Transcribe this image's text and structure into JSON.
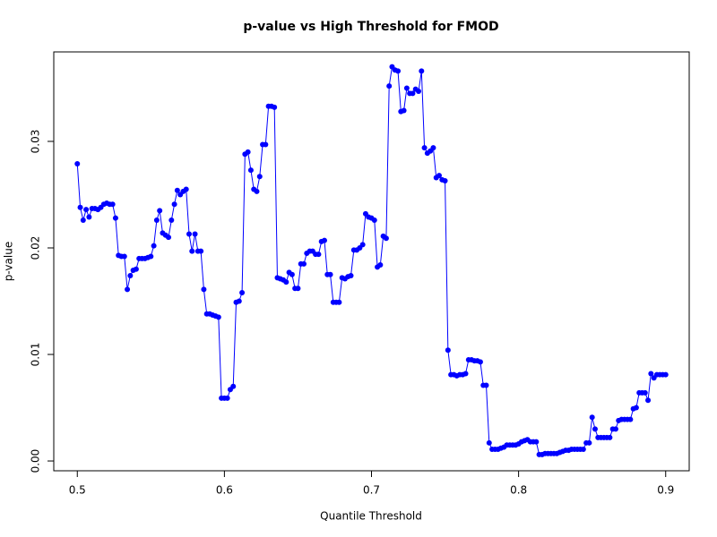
{
  "chart_data": {
    "type": "line",
    "title": "p-value vs High Threshold for FMOD",
    "x_label": "Quantile Threshold",
    "y_label": "p-value",
    "color": "#0000ff",
    "x": [
      0.5,
      0.502,
      0.504,
      0.506,
      0.508,
      0.51,
      0.512,
      0.514,
      0.516,
      0.518,
      0.52,
      0.522,
      0.524,
      0.526,
      0.528,
      0.53,
      0.532,
      0.534,
      0.536,
      0.538,
      0.54,
      0.542,
      0.544,
      0.546,
      0.548,
      0.55,
      0.552,
      0.554,
      0.556,
      0.558,
      0.56,
      0.562,
      0.564,
      0.566,
      0.568,
      0.57,
      0.572,
      0.574,
      0.576,
      0.578,
      0.58,
      0.582,
      0.584,
      0.586,
      0.588,
      0.59,
      0.592,
      0.594,
      0.596,
      0.598,
      0.6,
      0.602,
      0.604,
      0.606,
      0.608,
      0.61,
      0.612,
      0.614,
      0.616,
      0.618,
      0.62,
      0.622,
      0.624,
      0.626,
      0.628,
      0.63,
      0.632,
      0.634,
      0.636,
      0.638,
      0.64,
      0.642,
      0.644,
      0.646,
      0.648,
      0.65,
      0.652,
      0.654,
      0.656,
      0.658,
      0.66,
      0.662,
      0.664,
      0.666,
      0.668,
      0.67,
      0.672,
      0.674,
      0.676,
      0.678,
      0.68,
      0.682,
      0.684,
      0.686,
      0.688,
      0.69,
      0.692,
      0.694,
      0.696,
      0.698,
      0.7,
      0.702,
      0.704,
      0.706,
      0.708,
      0.71,
      0.712,
      0.714,
      0.716,
      0.718,
      0.72,
      0.722,
      0.724,
      0.726,
      0.728,
      0.73,
      0.732,
      0.734,
      0.736,
      0.738,
      0.74,
      0.742,
      0.744,
      0.746,
      0.748,
      0.75,
      0.752,
      0.754,
      0.756,
      0.758,
      0.76,
      0.762,
      0.764,
      0.766,
      0.768,
      0.77,
      0.772,
      0.774,
      0.776,
      0.778,
      0.78,
      0.782,
      0.784,
      0.786,
      0.788,
      0.79,
      0.792,
      0.794,
      0.796,
      0.798,
      0.8,
      0.802,
      0.804,
      0.806,
      0.808,
      0.81,
      0.812,
      0.814,
      0.816,
      0.818,
      0.82,
      0.822,
      0.824,
      0.826,
      0.828,
      0.83,
      0.832,
      0.834,
      0.836,
      0.838,
      0.84,
      0.842,
      0.844,
      0.846,
      0.848,
      0.85,
      0.852,
      0.854,
      0.856,
      0.858,
      0.86,
      0.862,
      0.864,
      0.866,
      0.868,
      0.87,
      0.872,
      0.874,
      0.876,
      0.878,
      0.88,
      0.882,
      0.884,
      0.886,
      0.888,
      0.89,
      0.892,
      0.894,
      0.896,
      0.898,
      0.9
    ],
    "values": [
      0.0279,
      0.0238,
      0.0226,
      0.0236,
      0.0229,
      0.0237,
      0.0237,
      0.0236,
      0.0238,
      0.0241,
      0.0242,
      0.0241,
      0.0241,
      0.0228,
      0.0193,
      0.0192,
      0.0192,
      0.0161,
      0.0174,
      0.0179,
      0.018,
      0.019,
      0.019,
      0.019,
      0.0191,
      0.0192,
      0.0202,
      0.0226,
      0.0235,
      0.0214,
      0.0212,
      0.021,
      0.0226,
      0.0241,
      0.0254,
      0.025,
      0.0253,
      0.0255,
      0.0213,
      0.0197,
      0.0213,
      0.0197,
      0.0197,
      0.0161,
      0.0138,
      0.0138,
      0.0137,
      0.0136,
      0.0135,
      0.0059,
      0.0059,
      0.0059,
      0.0067,
      0.007,
      0.0149,
      0.015,
      0.0158,
      0.0288,
      0.029,
      0.0273,
      0.0255,
      0.0253,
      0.0267,
      0.0297,
      0.0297,
      0.0333,
      0.0333,
      0.0332,
      0.0172,
      0.0171,
      0.017,
      0.0168,
      0.0177,
      0.0175,
      0.0162,
      0.0162,
      0.0185,
      0.0185,
      0.0195,
      0.0197,
      0.0197,
      0.0194,
      0.0194,
      0.0206,
      0.0207,
      0.0175,
      0.0175,
      0.0149,
      0.0149,
      0.0149,
      0.0172,
      0.0171,
      0.0173,
      0.0174,
      0.0198,
      0.0198,
      0.02,
      0.0203,
      0.0232,
      0.0229,
      0.0228,
      0.0226,
      0.0182,
      0.0184,
      0.0211,
      0.0209,
      0.0352,
      0.037,
      0.0367,
      0.0366,
      0.0328,
      0.0329,
      0.035,
      0.0345,
      0.0345,
      0.0349,
      0.0347,
      0.0366,
      0.0294,
      0.0289,
      0.0291,
      0.0294,
      0.0266,
      0.0268,
      0.0264,
      0.0263,
      0.0104,
      0.0081,
      0.0081,
      0.008,
      0.0081,
      0.0081,
      0.0082,
      0.0095,
      0.0095,
      0.0094,
      0.0094,
      0.0093,
      0.0071,
      0.0071,
      0.0017,
      0.0011,
      0.0011,
      0.0011,
      0.0012,
      0.0013,
      0.0015,
      0.0015,
      0.0015,
      0.0015,
      0.0016,
      0.0018,
      0.0019,
      0.002,
      0.0018,
      0.0018,
      0.0018,
      0.0006,
      0.0006,
      0.0007,
      0.0007,
      0.0007,
      0.0007,
      0.0007,
      0.0008,
      0.0009,
      0.001,
      0.001,
      0.0011,
      0.0011,
      0.0011,
      0.0011,
      0.0011,
      0.0017,
      0.0017,
      0.0041,
      0.003,
      0.0022,
      0.0022,
      0.0022,
      0.0022,
      0.0022,
      0.003,
      0.003,
      0.0038,
      0.0039,
      0.0039,
      0.0039,
      0.0039,
      0.0049,
      0.005,
      0.0064,
      0.0064,
      0.0064,
      0.0057,
      0.0082,
      0.0078,
      0.0081,
      0.0081,
      0.0081,
      0.0081
    ],
    "xlim": [
      0.484,
      0.916
    ],
    "ylim": [
      -0.00092,
      0.0384
    ],
    "xticks": [
      0.5,
      0.6,
      0.7,
      0.8,
      0.9
    ],
    "yticks": [
      {
        "value": 0,
        "label": "0.00"
      },
      0.01,
      0.02,
      0.03
    ]
  }
}
